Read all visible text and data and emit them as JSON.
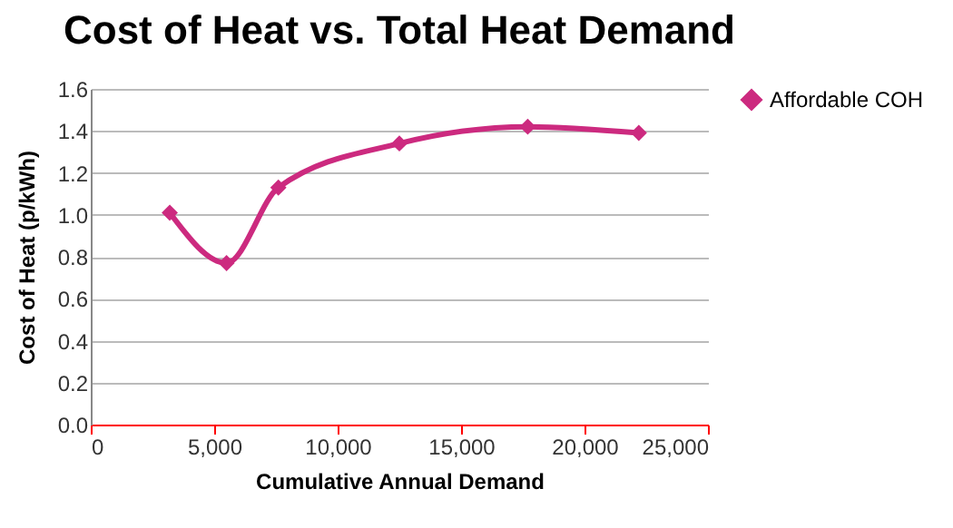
{
  "chart_data": {
    "type": "line",
    "title": "Cost of Heat vs. Total Heat Demand",
    "xlabel": "Cumulative Annual Demand",
    "ylabel": "Cost of Heat (p/kWh)",
    "x": [
      3200,
      5500,
      7600,
      12500,
      17700,
      22200
    ],
    "series": [
      {
        "name": "Affordable COH",
        "color": "#cc2a7f",
        "values": [
          1.01,
          0.77,
          1.13,
          1.34,
          1.42,
          1.39
        ]
      }
    ],
    "xlim": [
      0,
      25000
    ],
    "xticks": [
      {
        "value": 0,
        "label": "0"
      },
      {
        "value": 5000,
        "label": "5,000"
      },
      {
        "value": 10000,
        "label": "10,000"
      },
      {
        "value": 15000,
        "label": "15,000"
      },
      {
        "value": 20000,
        "label": "20,000"
      },
      {
        "value": 25000,
        "label": "25,000"
      }
    ],
    "ylim": [
      0,
      1.6
    ],
    "yticks": [
      {
        "value": 0,
        "label": "0.0"
      },
      {
        "value": 0.2,
        "label": "0.2"
      },
      {
        "value": 0.4,
        "label": "0.4"
      },
      {
        "value": 0.6,
        "label": "0.6"
      },
      {
        "value": 0.8,
        "label": "0.8"
      },
      {
        "value": 1.0,
        "label": "1.0"
      },
      {
        "value": 1.2,
        "label": "1.2"
      },
      {
        "value": 1.4,
        "label": "1.4"
      },
      {
        "value": 1.6,
        "label": "1.6"
      }
    ],
    "grid": "y",
    "legend": "right",
    "marker": "diamond",
    "line_style": "solid"
  }
}
